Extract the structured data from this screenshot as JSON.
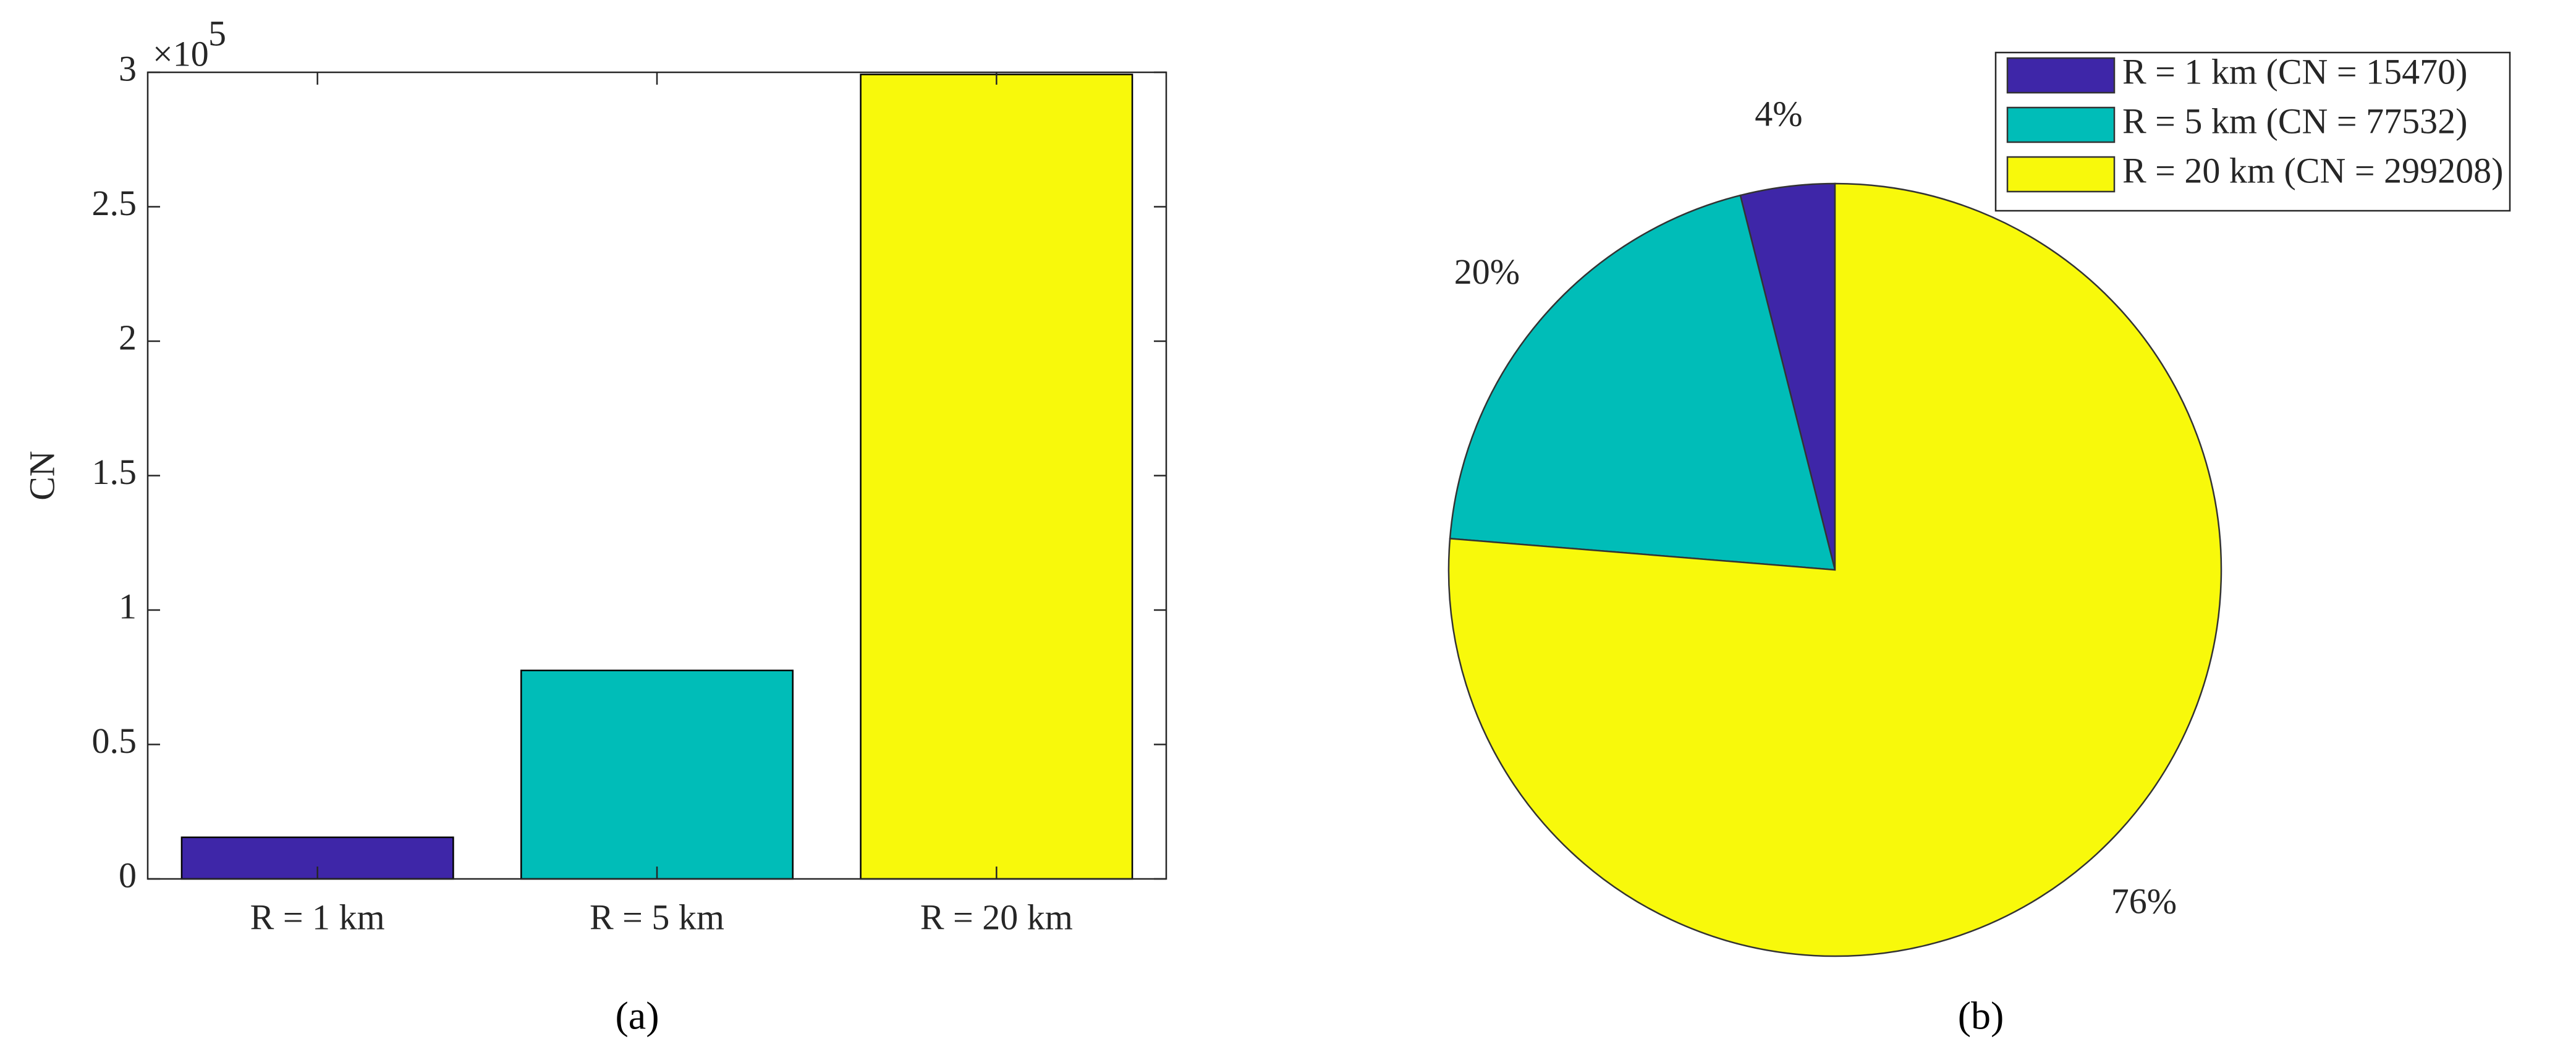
{
  "chart_data": [
    {
      "type": "bar",
      "y_label": "CN",
      "y_exponent_base": "×10",
      "y_exponent": "5",
      "caption": "(a)",
      "categories": [
        "R = 1 km",
        "R = 5 km",
        "R = 20 km"
      ],
      "values": [
        15470,
        77532,
        299208
      ],
      "colors": [
        "#3e26a8",
        "#00bdb8",
        "#f8f90b"
      ],
      "ylim": [
        0,
        300000
      ],
      "yticks": [
        0,
        {
          "value": 50000,
          "label": "0.5"
        },
        {
          "value": 100000,
          "label": "1"
        },
        {
          "value": 150000,
          "label": "1.5"
        },
        {
          "value": 200000,
          "label": "2"
        },
        {
          "value": 250000,
          "label": "2.5"
        },
        {
          "value": 300000,
          "label": "3"
        }
      ]
    },
    {
      "type": "pie",
      "caption": "(b)",
      "categories": [
        "R = 1 km (CN = 15470)",
        "R = 5 km (CN = 77532)",
        "R = 20 km (CN = 299208)"
      ],
      "values": [
        3.94,
        19.77,
        76.29
      ],
      "value_labels": [
        "4%",
        "20%",
        "76%"
      ],
      "colors": [
        "#3e26a8",
        "#00bdb8",
        "#f8f90b"
      ],
      "legend": "upper right"
    }
  ]
}
